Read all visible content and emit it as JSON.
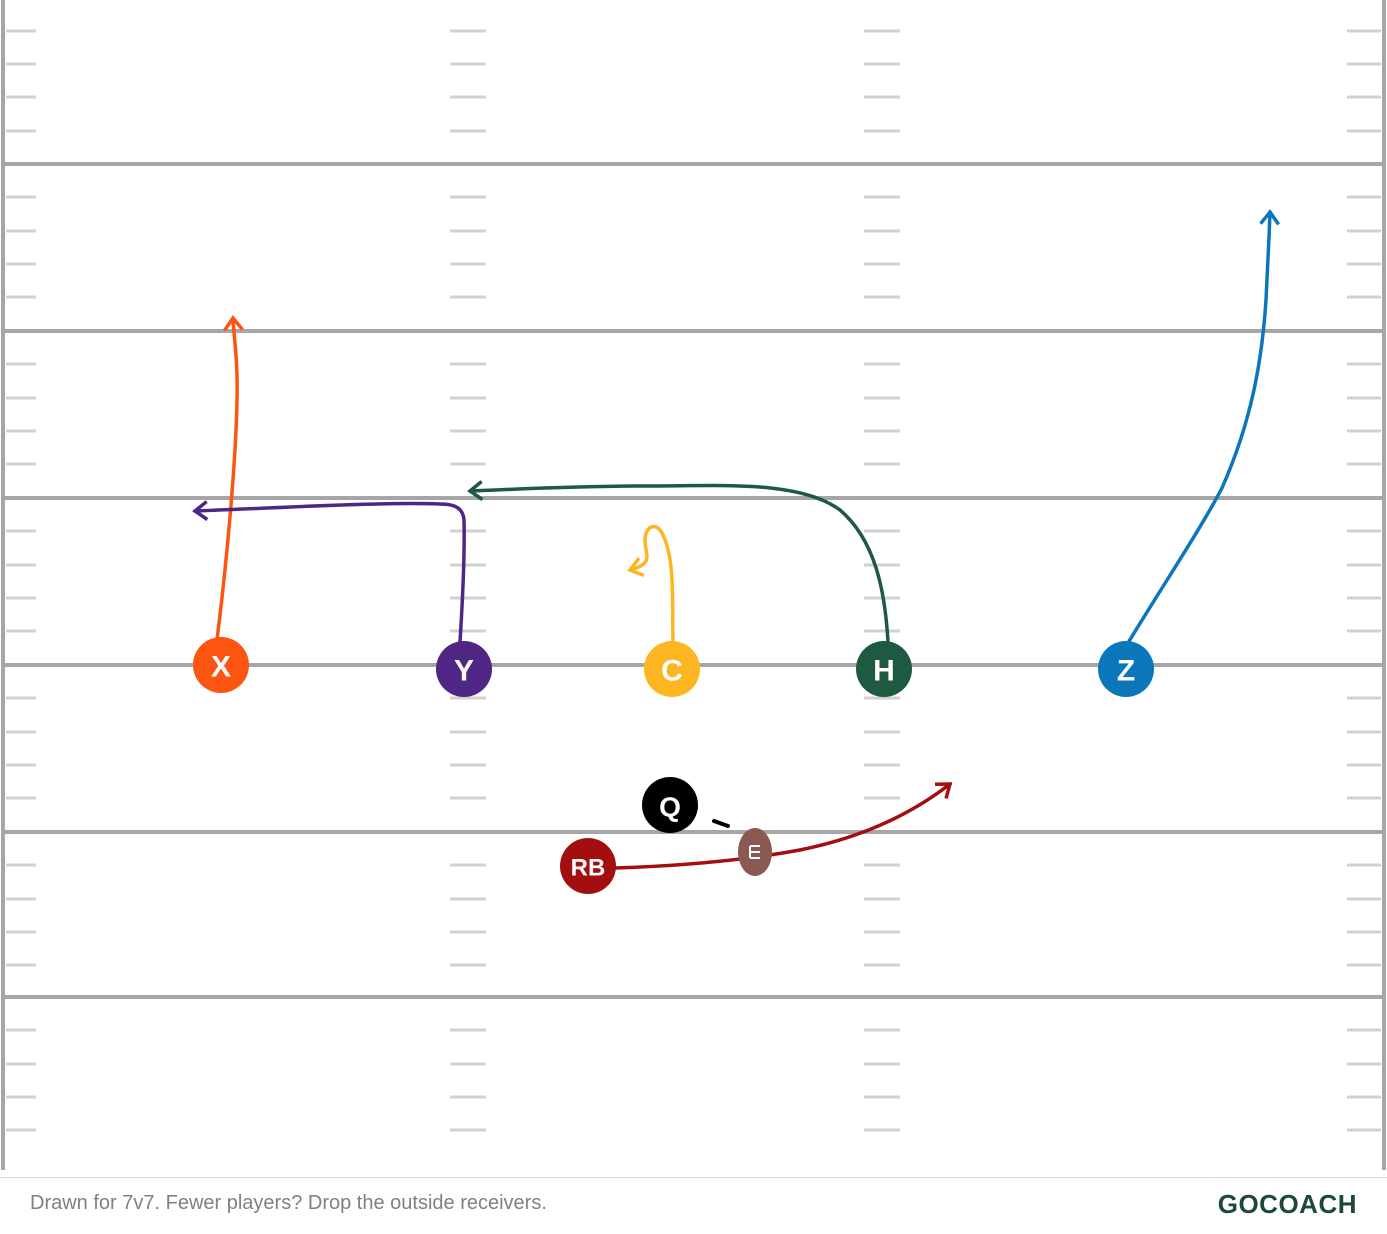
{
  "players": [
    {
      "id": "x",
      "label": "X",
      "color": "#fc5411"
    },
    {
      "id": "y",
      "label": "Y",
      "color": "#4f2683"
    },
    {
      "id": "c",
      "label": "C",
      "color": "#fdb521"
    },
    {
      "id": "h",
      "label": "H",
      "color": "#1d5a40"
    },
    {
      "id": "z",
      "label": "Z",
      "color": "#0b77ba"
    },
    {
      "id": "q",
      "label": "Q",
      "color": "#000000"
    },
    {
      "id": "rb",
      "label": "RB",
      "color": "#a30e0e"
    }
  ],
  "colors": {
    "field_line": "#a6a6a6",
    "hash_mark": "#d0d0d0",
    "football": "#8a5a52"
  },
  "icons": {
    "ball": "football-icon"
  },
  "footer": {
    "caption": "Drawn for 7v7. Fewer players? Drop the outside receivers.",
    "brand": "GOCOACH"
  }
}
